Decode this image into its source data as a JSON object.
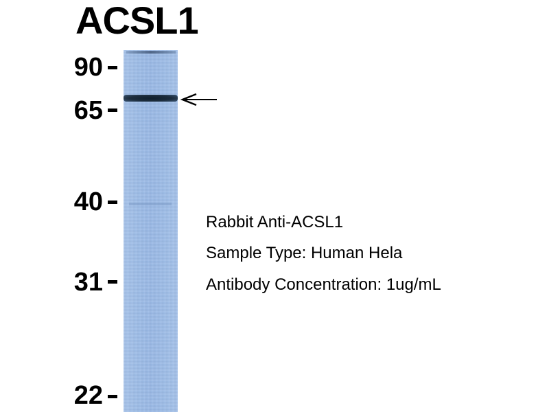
{
  "title": "ACSL1",
  "markers": [
    {
      "label": "90"
    },
    {
      "label": "65"
    },
    {
      "label": "40"
    },
    {
      "label": "31"
    },
    {
      "label": "22"
    }
  ],
  "info": {
    "antibody": "Rabbit Anti-ACSL1",
    "sample_type": "Sample Type: Human Hela",
    "concentration": "Antibody Concentration: 1ug/mL"
  },
  "colors": {
    "lane": "#9ebde8",
    "band": "#1c2c3c",
    "text": "#000000"
  },
  "icons": {
    "band_pointer": "left-arrow-icon"
  }
}
